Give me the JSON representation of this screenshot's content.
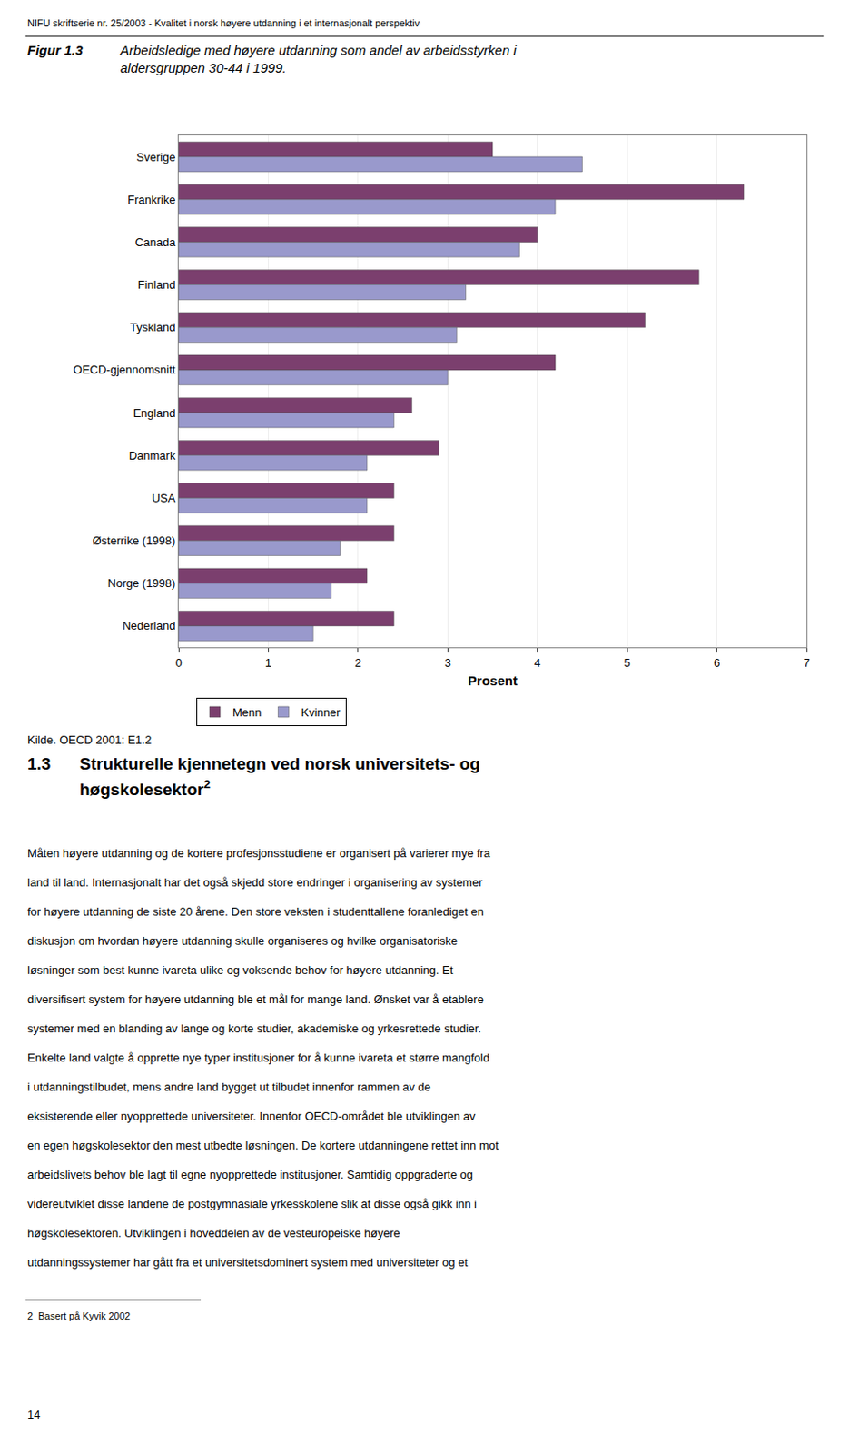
{
  "chart_data": {
    "type": "bar",
    "orientation": "horizontal",
    "title": "Figur 1.3",
    "subtitle": "Arbeidsledige med høyere utdanning som andel av arbeidsstyrken i\naldersgruppen 30-44 i 1999.",
    "categories": [
      "Sverige",
      "Frankrike",
      "Canada",
      "Finland",
      "Tyskland",
      "OECD-gjennomsnitt",
      "England",
      "Danmark",
      "USA",
      "Østerrike (1998)",
      "Norge (1998)",
      "Nederland"
    ],
    "series": [
      {
        "name": "Menn",
        "color": "#7B3F6E",
        "values": [
          3.5,
          6.3,
          4.0,
          5.8,
          5.2,
          4.2,
          2.6,
          2.9,
          2.4,
          2.4,
          2.1,
          2.4
        ]
      },
      {
        "name": "Kvinner",
        "color": "#9999CC",
        "values": [
          4.5,
          4.2,
          3.8,
          3.2,
          3.1,
          3.0,
          2.4,
          2.1,
          2.1,
          1.8,
          1.7,
          1.5
        ]
      }
    ],
    "xlabel": "Prosent",
    "xlim": [
      0,
      7
    ],
    "xticks": [
      0,
      1,
      2,
      3,
      4,
      5,
      6,
      7
    ],
    "grid": true,
    "legend": "bottom",
    "annotations": [
      "NIFU skriftserie nr. 25/2003 - Kvalitet i norsk høyere utdanning i et internasjonalt perspektiv",
      "Kilde. OECD 2001: E1.2",
      "1.3",
      "Strukturelle kjennetegn ved norsk universitets- og",
      "høgskolesektor",
      "2",
      "Måten høyere utdanning og de kortere profesjonsstudiene er organisert på varierer mye fra",
      "land til land. Internasjonalt har det også skjedd store endringer i organisering av systemer",
      "for høyere utdanning de siste 20 årene. Den store veksten i studenttallene foranlediget en",
      "diskusjon om hvordan høyere utdanning skulle organiseres og hvilke organisatoriske",
      "løsninger som best kunne ivareta ulike og voksende behov for høyere utdanning. Et",
      "diversifisert system for høyere utdanning ble et mål for mange land. Ønsket var å etablere",
      "systemer med en blanding av lange og korte studier, akademiske og yrkesrettede studier.",
      "Enkelte land valgte å opprette nye typer institusjoner for å kunne ivareta et større mangfold",
      "i utdanningstilbudet, mens andre land bygget ut tilbudet innenfor rammen av de",
      "eksisterende eller nyopprettede universiteter. Innenfor OECD-området ble utviklingen av",
      "en egen høgskolesektor den mest utbedte løsningen. De kortere utdanningene rettet inn mot",
      "arbeidslivets behov ble lagt til egne nyopprettede institusjoner. Samtidig oppgraderte og",
      "videreutviklet disse landene de postgymnasiale yrkesskolene slik at disse også gikk inn i",
      "høgskolesektoren. Utviklingen i hoveddelen av de vesteuropeiske høyere",
      "utdanningssystemer har gått fra et universitetsdominert system med universiteter og et",
      "2  Basert på Kyvik 2002",
      "14"
    ]
  }
}
